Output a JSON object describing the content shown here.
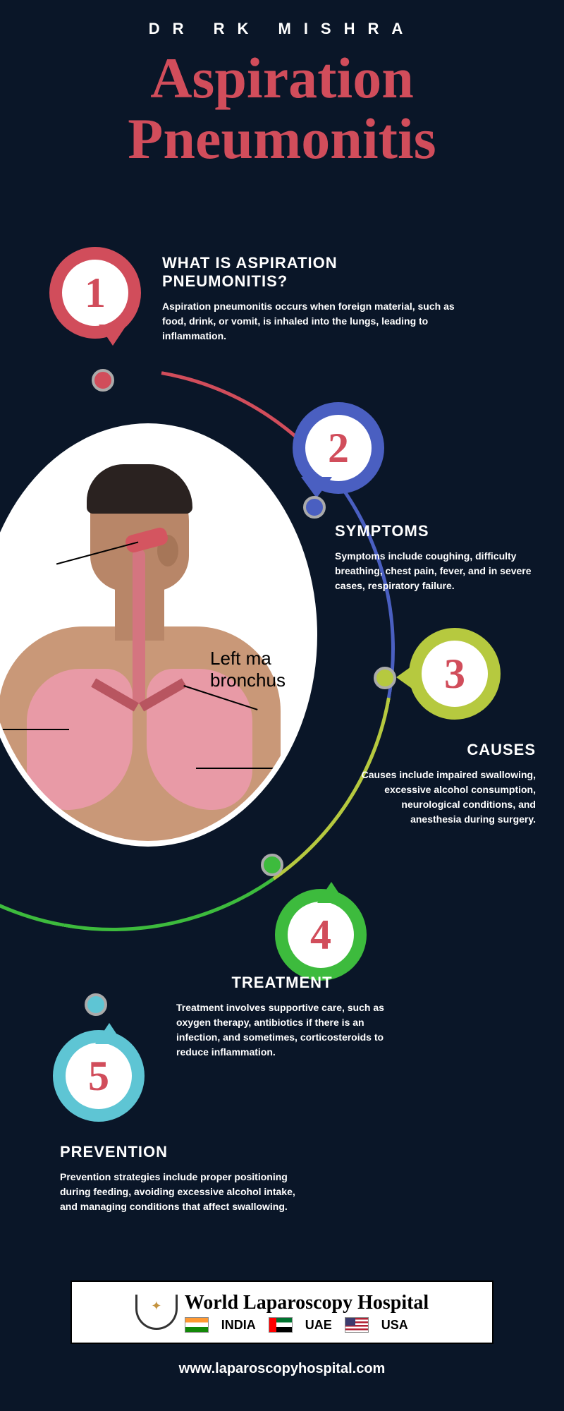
{
  "header": {
    "author": "DR RK MISHRA",
    "title_line1": "Aspiration",
    "title_line2": "Pneumonitis"
  },
  "colors": {
    "background": "#0a1628",
    "accent_red": "#d14d5b",
    "badge1": "#d14d5b",
    "badge2": "#4a5fc1",
    "badge3": "#b6c93f",
    "badge4": "#3dbb3d",
    "badge5": "#5ec5d4",
    "text": "#ffffff"
  },
  "sections": [
    {
      "num": "1",
      "title": "WHAT IS ASPIRATION PNEUMONITIS?",
      "body": "Aspiration pneumonitis occurs when foreign material, such as food, drink, or vomit, is inhaled into the lungs, leading to inflammation."
    },
    {
      "num": "2",
      "title": "SYMPTOMS",
      "body": "Symptoms include coughing, difficulty breathing, chest pain, fever, and in severe cases, respiratory failure."
    },
    {
      "num": "3",
      "title": "CAUSES",
      "body": "Causes include impaired swallowing, excessive alcohol consumption, neurological conditions, and anesthesia during surgery."
    },
    {
      "num": "4",
      "title": "TREATMENT",
      "body": "Treatment involves supportive care, such as oxygen therapy, antibiotics if there is an infection, and sometimes, corticosteroids to reduce inflammation."
    },
    {
      "num": "5",
      "title": "PREVENTION",
      "body": "Prevention strategies include proper positioning during feeding, avoiding excessive alcohol intake, and managing conditions that affect swallowing."
    }
  ],
  "anatomy_label": {
    "line1": "Left ma",
    "line2": "bronchus"
  },
  "footer": {
    "hospital": "World Laparoscopy Hospital",
    "countries": [
      "INDIA",
      "UAE",
      "USA"
    ],
    "url": "www.laparoscopyhospital.com"
  }
}
